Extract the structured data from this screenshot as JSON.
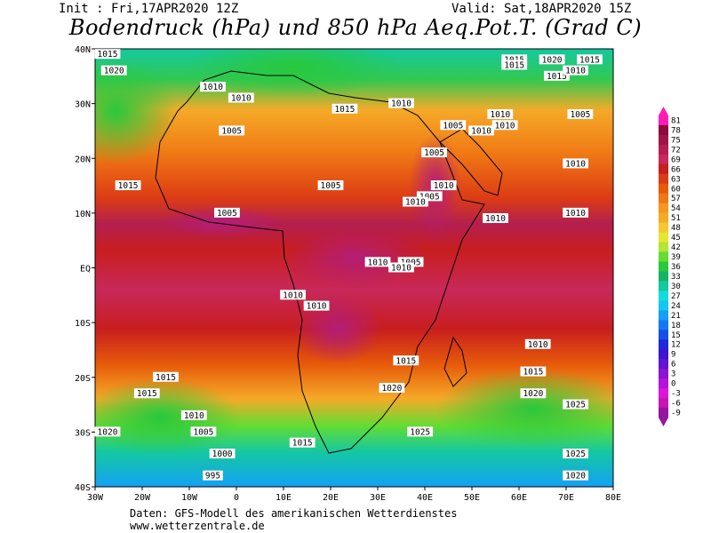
{
  "header": {
    "init": "Init : Fri,17APR2020 12Z",
    "valid": "Valid: Sat,18APR2020 15Z",
    "title": "Bodendruck (hPa) und 850 hPa Aeq.Pot.T. (Grad C)"
  },
  "footer": {
    "source": "Daten: GFS-Modell des amerikanischen Wetterdienstes",
    "url": "www.wetterzentrale.de"
  },
  "map": {
    "lon_range": [
      -30,
      80
    ],
    "lat_range": [
      -40,
      40
    ],
    "lon_ticks": [
      "30W",
      "20W",
      "10W",
      "0",
      "10E",
      "20E",
      "30E",
      "40E",
      "50E",
      "60E",
      "70E",
      "80E"
    ],
    "lat_ticks": [
      "40N",
      "30N",
      "20N",
      "10N",
      "EQ",
      "10S",
      "20S",
      "30S",
      "40S"
    ]
  },
  "colorbar": {
    "values": [
      "81",
      "78",
      "75",
      "72",
      "69",
      "66",
      "63",
      "60",
      "57",
      "54",
      "51",
      "48",
      "45",
      "42",
      "39",
      "36",
      "33",
      "30",
      "27",
      "24",
      "21",
      "18",
      "15",
      "12",
      "9",
      "6",
      "3",
      "0",
      "-3",
      "-6",
      "-9"
    ],
    "colors": [
      "#ff1cb4",
      "#8c0a3c",
      "#a01446",
      "#b41e50",
      "#c8285a",
      "#c81e1e",
      "#dc3c14",
      "#e65a0a",
      "#f07814",
      "#f5961e",
      "#f5aa28",
      "#f5c832",
      "#e6e632",
      "#b4e632",
      "#64dc32",
      "#28c83c",
      "#14b464",
      "#14c8a0",
      "#14dcdc",
      "#14c8f0",
      "#14a0f5",
      "#1478f5",
      "#1450e6",
      "#1e28dc",
      "#3c14d2",
      "#6414d2",
      "#8c14d2",
      "#b414dc",
      "#dc14dc",
      "#c814b4",
      "#9614a0"
    ]
  },
  "isobars": [
    {
      "label": "1020",
      "lon": -26,
      "lat": 36
    },
    {
      "label": "1015",
      "lon": -29,
      "lat": 39
    },
    {
      "label": "1010",
      "lon": -5,
      "lat": 33
    },
    {
      "label": "1010",
      "lon": 1,
      "lat": 31
    },
    {
      "label": "1005",
      "lon": -1,
      "lat": 25
    },
    {
      "label": "1015",
      "lon": 23,
      "lat": 29
    },
    {
      "label": "1010",
      "lon": 35,
      "lat": 30
    },
    {
      "label": "1015",
      "lon": 59,
      "lat": 38
    },
    {
      "label": "1015",
      "lon": 59,
      "lat": 37
    },
    {
      "label": "1020",
      "lon": 67,
      "lat": 38
    },
    {
      "label": "1015",
      "lon": 75,
      "lat": 38
    },
    {
      "label": "1015",
      "lon": 68,
      "lat": 35
    },
    {
      "label": "1010",
      "lon": 72,
      "lat": 36
    },
    {
      "label": "1010",
      "lon": 56,
      "lat": 28
    },
    {
      "label": "1005",
      "lon": 46,
      "lat": 26
    },
    {
      "label": "1010",
      "lon": 52,
      "lat": 25
    },
    {
      "label": "1010",
      "lon": 57,
      "lat": 26
    },
    {
      "label": "1005",
      "lon": 73,
      "lat": 28
    },
    {
      "label": "1005",
      "lon": 42,
      "lat": 21
    },
    {
      "label": "1010",
      "lon": 72,
      "lat": 19
    },
    {
      "label": "1015",
      "lon": -23,
      "lat": 15
    },
    {
      "label": "1005",
      "lon": 20,
      "lat": 15
    },
    {
      "label": "1010",
      "lon": 44,
      "lat": 15
    },
    {
      "label": "1005",
      "lon": 41,
      "lat": 13
    },
    {
      "label": "1010",
      "lon": 38,
      "lat": 12
    },
    {
      "label": "1005",
      "lon": -2,
      "lat": 10
    },
    {
      "label": "1010",
      "lon": 55,
      "lat": 9
    },
    {
      "label": "1010",
      "lon": 72,
      "lat": 10
    },
    {
      "label": "1010",
      "lon": 30,
      "lat": 1
    },
    {
      "label": "1005",
      "lon": 37,
      "lat": 1
    },
    {
      "label": "1010",
      "lon": 35,
      "lat": 0
    },
    {
      "label": "1010",
      "lon": 12,
      "lat": -5
    },
    {
      "label": "1010",
      "lon": 17,
      "lat": -7
    },
    {
      "label": "1010",
      "lon": 64,
      "lat": -14
    },
    {
      "label": "1015",
      "lon": 36,
      "lat": -17
    },
    {
      "label": "1015",
      "lon": 63,
      "lat": -19
    },
    {
      "label": "1015",
      "lon": -15,
      "lat": -20
    },
    {
      "label": "1015",
      "lon": -19,
      "lat": -23
    },
    {
      "label": "1020",
      "lon": 33,
      "lat": -22
    },
    {
      "label": "1020",
      "lon": 63,
      "lat": -23
    },
    {
      "label": "1025",
      "lon": 72,
      "lat": -25
    },
    {
      "label": "1010",
      "lon": -9,
      "lat": -27
    },
    {
      "label": "1025",
      "lon": 39,
      "lat": -30
    },
    {
      "label": "1020",
      "lon": -30,
      "lat": -30
    },
    {
      "label": "1005",
      "lon": -7,
      "lat": -30
    },
    {
      "label": "1015",
      "lon": 14,
      "lat": -32
    },
    {
      "label": "1000",
      "lon": -3,
      "lat": -34
    },
    {
      "label": "1025",
      "lon": 72,
      "lat": -34
    },
    {
      "label": "995",
      "lon": -5,
      "lat": -38
    },
    {
      "label": "1020",
      "lon": 72,
      "lat": -38
    }
  ]
}
